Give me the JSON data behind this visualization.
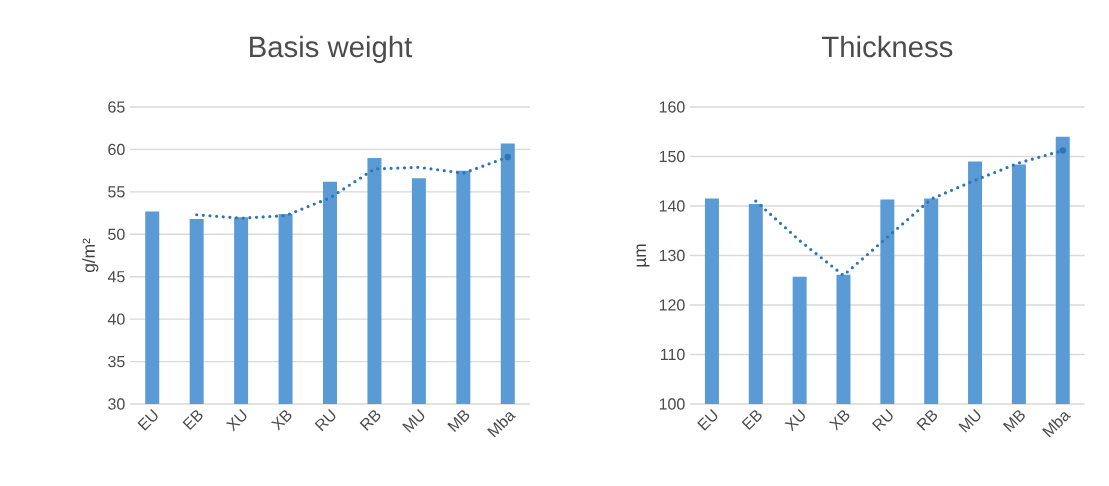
{
  "chart_data": [
    {
      "type": "bar",
      "title": "Basis weight",
      "ylabel": "g/m²",
      "categories": [
        "EU",
        "EB",
        "XU",
        "XB",
        "RU",
        "RB",
        "MU",
        "MB",
        "Mba"
      ],
      "series": [
        {
          "color": "#5b9bd5",
          "values": [
            52.7,
            51.8,
            52.0,
            52.4,
            56.2,
            59.0,
            56.6,
            57.5,
            60.7
          ]
        },
        {
          "type": "line",
          "color": "#2e75b6",
          "line_style": "dotted",
          "values": [
            null,
            52.3,
            51.9,
            52.2,
            54.3,
            57.7,
            57.9,
            57.2,
            59.1
          ]
        }
      ],
      "ylim": [
        30,
        65
      ],
      "yticks": [
        30,
        35,
        40,
        45,
        50,
        55,
        60,
        65
      ],
      "grid": "y"
    },
    {
      "type": "bar",
      "title": "Thickness",
      "ylabel": "µm",
      "categories": [
        "EU",
        "EB",
        "XU",
        "XB",
        "RU",
        "RB",
        "MU",
        "MB",
        "Mba"
      ],
      "series": [
        {
          "color": "#5b9bd5",
          "values": [
            141.5,
            140.4,
            125.7,
            126.1,
            141.3,
            141.5,
            149.0,
            148.4,
            154.0
          ]
        },
        {
          "type": "line",
          "color": "#2e75b6",
          "line_style": "dotted",
          "values": [
            null,
            141.0,
            133.0,
            126.0,
            133.7,
            141.4,
            145.2,
            148.7,
            151.2
          ]
        }
      ],
      "ylim": [
        100,
        160
      ],
      "yticks": [
        100,
        110,
        120,
        130,
        140,
        150,
        160
      ],
      "grid": "y"
    }
  ]
}
